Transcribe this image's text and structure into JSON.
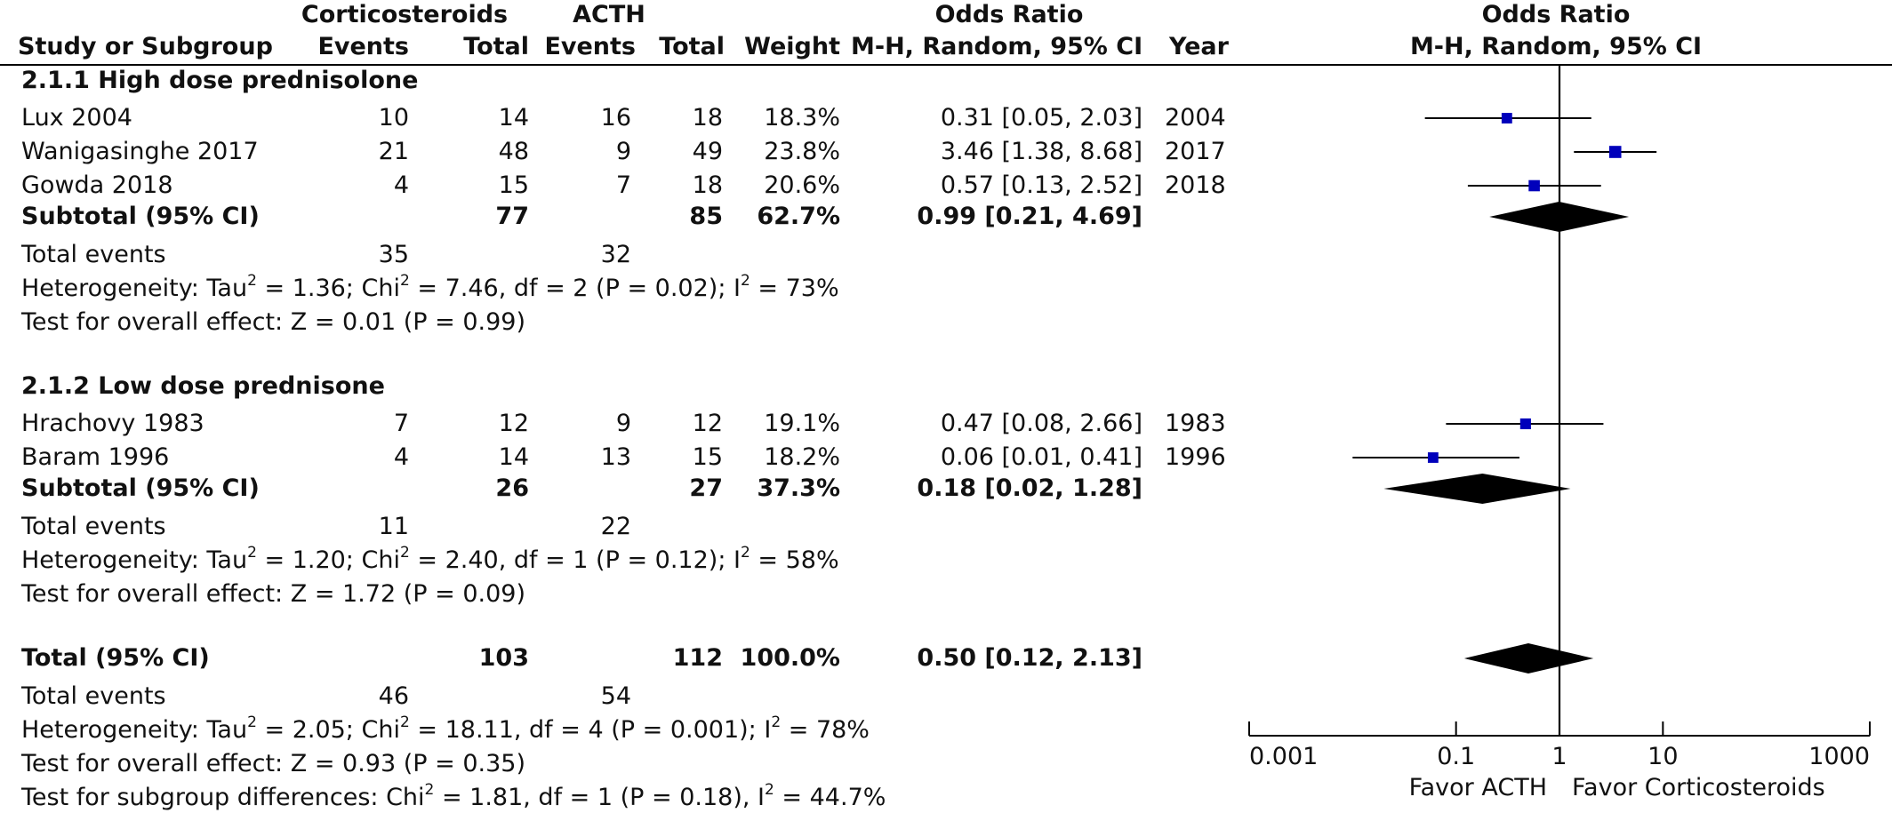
{
  "header": {
    "group1": "Corticosteroids",
    "group2": "ACTH",
    "or_title": "Odds Ratio",
    "col_study": "Study or Subgroup",
    "col_events1": "Events",
    "col_total1": "Total",
    "col_events2": "Events",
    "col_total2": "Total",
    "col_weight": "Weight",
    "col_ci": "M-H, Random, 95% CI",
    "col_year": "Year",
    "plot_title": "Odds Ratio",
    "plot_subtitle": "M-H, Random, 95% CI"
  },
  "subgroups": [
    {
      "title": "2.1.1 High dose prednisolone",
      "studies": [
        {
          "name": "Lux 2004",
          "events1": "10",
          "total1": "14",
          "events2": "16",
          "total2": "18",
          "weight": "18.3%",
          "ci": "0.31 [0.05, 2.03]",
          "year": "2004"
        },
        {
          "name": "Wanigasinghe 2017",
          "events1": "21",
          "total1": "48",
          "events2": "9",
          "total2": "49",
          "weight": "23.8%",
          "ci": "3.46 [1.38, 8.68]",
          "year": "2017"
        },
        {
          "name": "Gowda 2018",
          "events1": "4",
          "total1": "15",
          "events2": "7",
          "total2": "18",
          "weight": "20.6%",
          "ci": "0.57 [0.13, 2.52]",
          "year": "2018"
        }
      ],
      "subtotal": {
        "label": "Subtotal (95% CI)",
        "total1": "77",
        "total2": "85",
        "weight": "62.7%",
        "ci": "0.99 [0.21, 4.69]"
      },
      "events": {
        "label": "Total events",
        "e1": "35",
        "e2": "32"
      },
      "heterogeneity": {
        "prefix": "Heterogeneity: Tau",
        "tau_rest": " = 1.36; Chi",
        "chi_rest": " = 7.46, df = 2 (P = 0.02); I",
        "i2_rest": " = 73%"
      },
      "overall": "Test for overall effect: Z = 0.01 (P = 0.99)"
    },
    {
      "title": "2.1.2 Low dose prednisone",
      "studies": [
        {
          "name": "Hrachovy 1983",
          "events1": "7",
          "total1": "12",
          "events2": "9",
          "total2": "12",
          "weight": "19.1%",
          "ci": "0.47 [0.08, 2.66]",
          "year": "1983"
        },
        {
          "name": "Baram 1996",
          "events1": "4",
          "total1": "14",
          "events2": "13",
          "total2": "15",
          "weight": "18.2%",
          "ci": "0.06 [0.01, 0.41]",
          "year": "1996"
        }
      ],
      "subtotal": {
        "label": "Subtotal (95% CI)",
        "total1": "26",
        "total2": "27",
        "weight": "37.3%",
        "ci": "0.18 [0.02, 1.28]"
      },
      "events": {
        "label": "Total events",
        "e1": "11",
        "e2": "22"
      },
      "heterogeneity": {
        "prefix": "Heterogeneity: Tau",
        "tau_rest": " = 1.20; Chi",
        "chi_rest": " = 2.40, df = 1 (P = 0.12); I",
        "i2_rest": " = 58%"
      },
      "overall": "Test for overall effect: Z = 1.72 (P = 0.09)"
    }
  ],
  "total": {
    "label": "Total (95% CI)",
    "total1": "103",
    "total2": "112",
    "weight": "100.0%",
    "ci": "0.50 [0.12, 2.13]",
    "events": {
      "label": "Total events",
      "e1": "46",
      "e2": "54"
    },
    "heterogeneity": {
      "prefix": "Heterogeneity: Tau",
      "tau_rest": " = 2.05; Chi",
      "chi_rest": " = 18.11, df = 4 (P = 0.001); I",
      "i2_rest": " = 78%"
    },
    "overall": "Test for overall effect: Z = 0.93 (P = 0.35)",
    "subgroup_diff": {
      "prefix": "Test for subgroup differences: Chi",
      "chi_rest": " = 1.81, df = 1 (P = 0.18), I",
      "i2_rest": " = 44.7%"
    }
  },
  "sup2": "2",
  "chart_data": {
    "type": "scatter",
    "title": "Odds Ratio",
    "subtitle": "M-H, Random, 95% CI",
    "x_scale": "log",
    "xlim": [
      0.001,
      1000
    ],
    "xticks": [
      0.001,
      0.1,
      1,
      10,
      1000
    ],
    "xtick_labels": [
      "0.001",
      "0.1",
      "1",
      "10",
      "1000"
    ],
    "reference_line": 1,
    "favor_left": "Favor ACTH",
    "favor_right": "Favor Corticosteroids",
    "colors": {
      "square": "#0000bb",
      "line": "#000000",
      "diamond": "#000000"
    },
    "studies": [
      {
        "name": "Lux 2004",
        "or": 0.31,
        "lo": 0.05,
        "hi": 2.03,
        "weight": 18.3
      },
      {
        "name": "Wanigasinghe 2017",
        "or": 3.46,
        "lo": 1.38,
        "hi": 8.68,
        "weight": 23.8
      },
      {
        "name": "Gowda 2018",
        "or": 0.57,
        "lo": 0.13,
        "hi": 2.52,
        "weight": 20.6
      },
      {
        "name": "Hrachovy 1983",
        "or": 0.47,
        "lo": 0.08,
        "hi": 2.66,
        "weight": 19.1
      },
      {
        "name": "Baram 1996",
        "or": 0.06,
        "lo": 0.01,
        "hi": 0.41,
        "weight": 18.2
      }
    ],
    "diamonds": [
      {
        "name": "Subtotal high dose prednisolone",
        "or": 0.99,
        "lo": 0.21,
        "hi": 4.69
      },
      {
        "name": "Subtotal low dose prednisone",
        "or": 0.18,
        "lo": 0.02,
        "hi": 1.28
      },
      {
        "name": "Total",
        "or": 0.5,
        "lo": 0.12,
        "hi": 2.13
      }
    ]
  }
}
